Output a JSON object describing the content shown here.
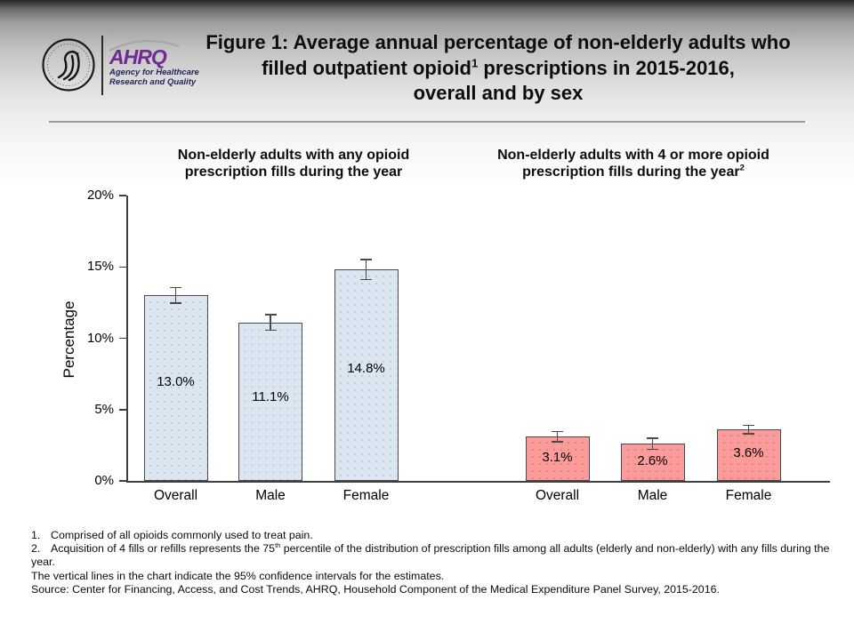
{
  "logo": {
    "acronym": "AHRQ",
    "tagline1": "Agency for Healthcare",
    "tagline2": "Research and Quality",
    "seal_icon": "hhs-eagle-seal",
    "accent_color": "#6e2c91"
  },
  "title": {
    "line1": "Figure 1: Average annual percentage of non-elderly adults who",
    "line2_pre": "filled outpatient opioid",
    "line2_sup": "1",
    "line2_post": " prescriptions in 2015-2016,",
    "line3": "overall and by sex"
  },
  "chart_data": {
    "type": "bar",
    "title": "Figure 1: Average annual percentage of non-elderly adults who filled outpatient opioid prescriptions in 2015-2016, overall and by sex",
    "ylabel": "Percentage",
    "ylim": [
      0,
      20
    ],
    "yticks": [
      "0%",
      "5%",
      "10%",
      "15%",
      "20%"
    ],
    "grid": "off",
    "error_bars": "95% confidence intervals",
    "groups": [
      {
        "key": "any",
        "header_line1": "Non-elderly adults with any opioid",
        "header_line2": "prescription fills during the year",
        "header_line2_sup": "",
        "color": "#dce6f1",
        "bars": [
          {
            "category": "Overall",
            "value": 13.0,
            "label": "13.0%",
            "ci_half": 0.55
          },
          {
            "category": "Male",
            "value": 11.1,
            "label": "11.1%",
            "ci_half": 0.55
          },
          {
            "category": "Female",
            "value": 14.8,
            "label": "14.8%",
            "ci_half": 0.7
          }
        ]
      },
      {
        "key": "4plus",
        "header_line1": "Non-elderly adults with 4 or more opioid",
        "header_line2": "prescription fills during the year",
        "header_line2_sup": "2",
        "color": "#fa9c9c",
        "bars": [
          {
            "category": "Overall",
            "value": 3.1,
            "label": "3.1%",
            "ci_half": 0.35
          },
          {
            "category": "Male",
            "value": 2.6,
            "label": "2.6%",
            "ci_half": 0.4
          },
          {
            "category": "Female",
            "value": 3.6,
            "label": "3.6%",
            "ci_half": 0.3
          }
        ]
      }
    ]
  },
  "footnotes": {
    "n1_num": "1.",
    "n1_text": "Comprised of all opioids commonly used to treat pain.",
    "n2_num": "2.",
    "n2_pre": "Acquisition of 4 fills or refills represents the 75",
    "n2_sup": "th",
    "n2_post": " percentile of the distribution of prescription fills among all adults (elderly and non-elderly) with any fills during the year.",
    "ci_note": "The vertical lines in the chart indicate the 95% confidence intervals for the estimates.",
    "source": "Source: Center for Financing, Access, and Cost Trends, AHRQ, Household Component of the Medical Expenditure Panel Survey, 2015-2016."
  }
}
